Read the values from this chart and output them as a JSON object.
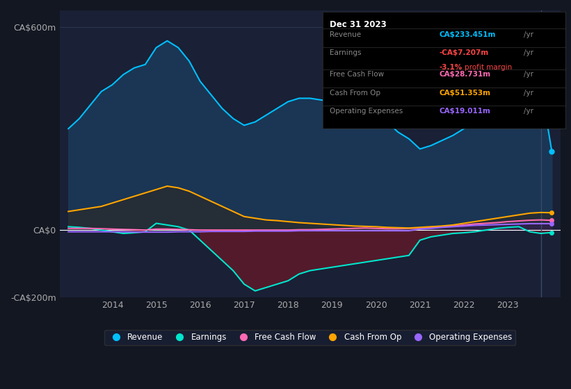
{
  "bg_color": "#131722",
  "plot_bg_color": "#1a2035",
  "grid_color": "#2a3550",
  "years": [
    2013.0,
    2013.25,
    2013.5,
    2013.75,
    2014.0,
    2014.25,
    2014.5,
    2014.75,
    2015.0,
    2015.25,
    2015.5,
    2015.75,
    2016.0,
    2016.25,
    2016.5,
    2016.75,
    2017.0,
    2017.25,
    2017.5,
    2017.75,
    2018.0,
    2018.25,
    2018.5,
    2018.75,
    2019.0,
    2019.25,
    2019.5,
    2019.75,
    2020.0,
    2020.25,
    2020.5,
    2020.75,
    2021.0,
    2021.25,
    2021.5,
    2021.75,
    2022.0,
    2022.25,
    2022.5,
    2022.75,
    2023.0,
    2023.25,
    2023.5,
    2023.75,
    2024.0
  ],
  "revenue": [
    300,
    330,
    370,
    410,
    430,
    460,
    480,
    490,
    540,
    560,
    540,
    500,
    440,
    400,
    360,
    330,
    310,
    320,
    340,
    360,
    380,
    390,
    390,
    385,
    380,
    370,
    360,
    355,
    340,
    320,
    290,
    270,
    240,
    250,
    265,
    280,
    300,
    330,
    360,
    380,
    390,
    400,
    420,
    430,
    233
  ],
  "earnings": [
    10,
    8,
    5,
    0,
    -5,
    -10,
    -8,
    -5,
    20,
    15,
    10,
    0,
    -30,
    -60,
    -90,
    -120,
    -160,
    -180,
    -170,
    -160,
    -150,
    -130,
    -120,
    -115,
    -110,
    -105,
    -100,
    -95,
    -90,
    -85,
    -80,
    -75,
    -30,
    -20,
    -15,
    -10,
    -8,
    -5,
    0,
    5,
    8,
    10,
    -5,
    -10,
    -7.207
  ],
  "free_cash_flow": [
    5,
    5,
    5,
    4,
    3,
    2,
    1,
    0,
    3,
    3,
    2,
    1,
    0,
    0,
    0,
    0,
    0,
    0,
    0,
    0,
    0,
    1,
    1,
    2,
    3,
    4,
    5,
    6,
    5,
    4,
    4,
    5,
    6,
    8,
    10,
    12,
    15,
    18,
    20,
    22,
    25,
    27,
    29,
    30,
    28.731
  ],
  "cash_from_op": [
    55,
    60,
    65,
    70,
    80,
    90,
    100,
    110,
    120,
    130,
    125,
    115,
    100,
    85,
    70,
    55,
    40,
    35,
    30,
    28,
    25,
    22,
    20,
    18,
    16,
    14,
    12,
    11,
    10,
    8,
    7,
    6,
    8,
    10,
    12,
    15,
    20,
    25,
    30,
    35,
    40,
    45,
    50,
    52,
    51.353
  ],
  "operating_expenses": [
    -5,
    -5,
    -5,
    -5,
    -5,
    -5,
    -6,
    -6,
    -6,
    -6,
    -5,
    -5,
    -5,
    -4,
    -4,
    -4,
    -4,
    -3,
    -3,
    -3,
    -3,
    -2,
    -2,
    -2,
    -2,
    -2,
    -2,
    -2,
    -2,
    -2,
    -2,
    -2,
    3,
    5,
    8,
    10,
    12,
    14,
    15,
    16,
    17,
    18,
    19,
    19,
    19.011
  ],
  "revenue_color": "#00bfff",
  "earnings_color": "#00e5cc",
  "free_cash_flow_color": "#ff69b4",
  "cash_from_op_color": "#ffa500",
  "operating_expenses_color": "#9966ff",
  "earnings_fill_color": "#5a1a2a",
  "revenue_fill_color": "#1a3a5a",
  "cop_fill_color": "#2a2a2a",
  "info_box": {
    "date": "Dec 31 2023",
    "revenue_label": "Revenue",
    "revenue_value": "CA$233.451m",
    "revenue_color": "#00bfff",
    "earnings_label": "Earnings",
    "earnings_value": "-CA$7.207m",
    "earnings_color": "#ff4444",
    "margin_value": "-3.1%",
    "margin_label": "profit margin",
    "margin_color": "#ff4444",
    "fcf_label": "Free Cash Flow",
    "fcf_value": "CA$28.731m",
    "fcf_color": "#ff69b4",
    "cop_label": "Cash From Op",
    "cop_value": "CA$51.353m",
    "cop_color": "#ffa500",
    "opex_label": "Operating Expenses",
    "opex_value": "CA$19.011m",
    "opex_color": "#9966ff"
  },
  "legend_items": [
    {
      "label": "Revenue",
      "color": "#00bfff"
    },
    {
      "label": "Earnings",
      "color": "#00e5cc"
    },
    {
      "label": "Free Cash Flow",
      "color": "#ff69b4"
    },
    {
      "label": "Cash From Op",
      "color": "#ffa500"
    },
    {
      "label": "Operating Expenses",
      "color": "#9966ff"
    }
  ],
  "xlim": [
    2012.8,
    2024.2
  ],
  "ylim": [
    -200,
    650
  ],
  "xticks": [
    2014,
    2015,
    2016,
    2017,
    2018,
    2019,
    2020,
    2021,
    2022,
    2023
  ],
  "yticks_labels": [
    "CA$600m",
    "CA$0",
    "-CA$200m"
  ],
  "yticks_values": [
    600,
    0,
    -200
  ]
}
